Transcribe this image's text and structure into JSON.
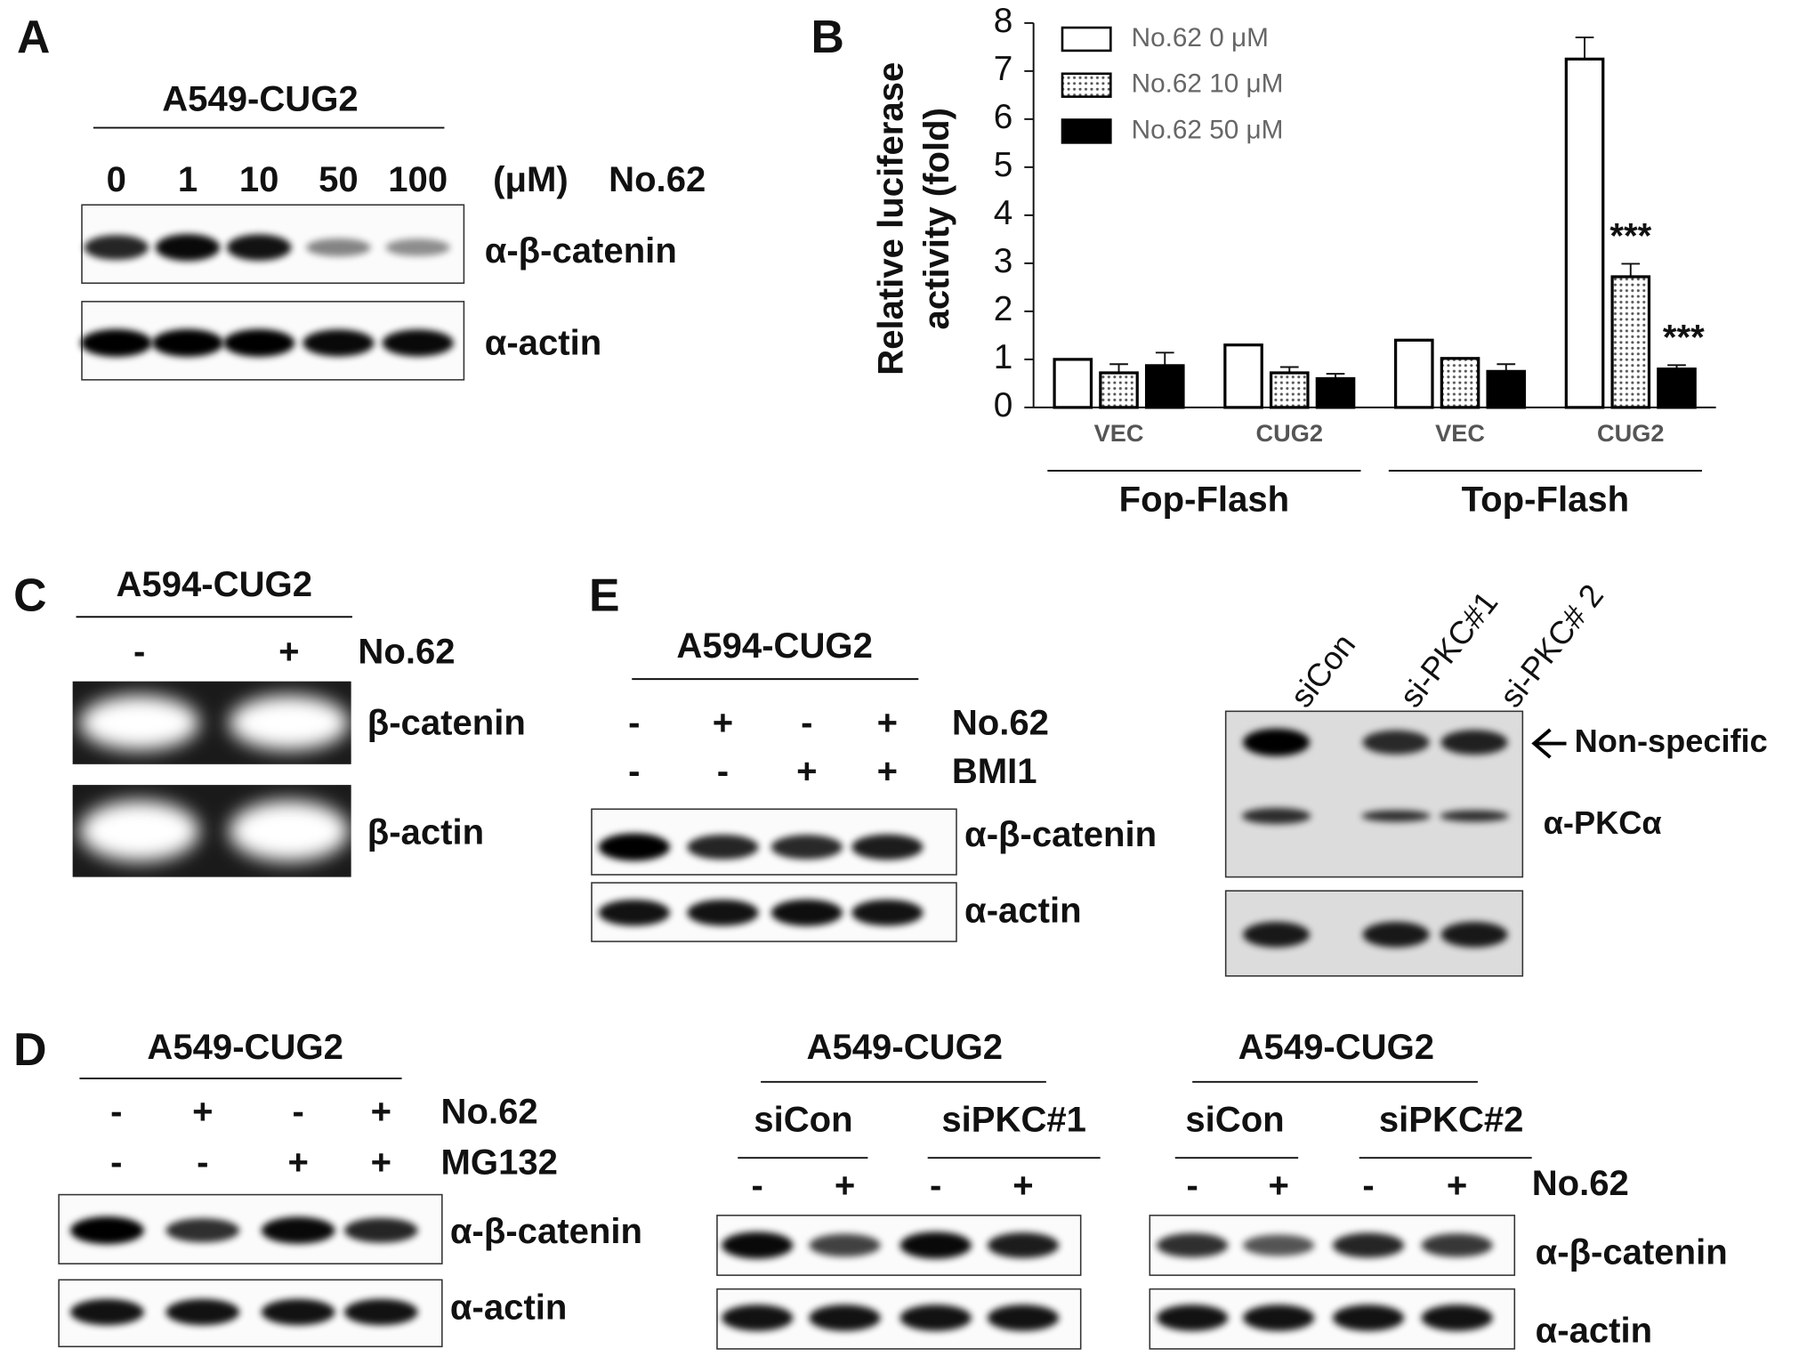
{
  "panels": {
    "A": {
      "letter": "A",
      "cell": "A549-CUG2",
      "doses": [
        "0",
        "1",
        "10",
        "50",
        "100"
      ],
      "unit": "(μM)",
      "drug": "No.62",
      "rows": [
        "α-β-catenin",
        "α-actin"
      ]
    },
    "B": {
      "letter": "B"
    },
    "C": {
      "letter": "C",
      "cell": "A594-CUG2",
      "treatments": [
        "-",
        "+"
      ],
      "drug": "No.62",
      "rows": [
        "β-catenin",
        "β-actin"
      ]
    },
    "E": {
      "letter": "E",
      "cell": "A594-CUG2",
      "drug": "No.62",
      "drug_signs": [
        "-",
        "+",
        "-",
        "+"
      ],
      "drug2": "BMI1",
      "drug2_signs": [
        "-",
        "-",
        "+",
        "+"
      ],
      "rows": [
        "α-β-catenin",
        "α-actin"
      ],
      "si_lanes": [
        "siCon",
        "si-PKC#1",
        "si-PKC# 2"
      ],
      "si_rows": [
        "Non-specific",
        "α-PKCα"
      ]
    },
    "D": {
      "letter": "D",
      "left": {
        "cell": "A549-CUG2",
        "drug": "No.62",
        "drug_signs": [
          "-",
          "+",
          "-",
          "+"
        ],
        "drug2": "MG132",
        "drug2_signs": [
          "-",
          "-",
          "+",
          "+"
        ],
        "rows": [
          "α-β-catenin",
          "α-actin"
        ]
      },
      "middle": {
        "cell": "A549-CUG2",
        "groups": [
          "siCon",
          "siPKC#1"
        ],
        "signs": [
          "-",
          "+",
          "-",
          "+"
        ]
      },
      "right": {
        "cell": "A549-CUG2",
        "groups": [
          "siCon",
          "siPKC#2"
        ],
        "signs": [
          "-",
          "+",
          "-",
          "+"
        ],
        "drug": "No.62",
        "rows": [
          "α-β-catenin",
          "α-actin"
        ]
      }
    }
  },
  "chart_data": {
    "type": "bar",
    "ylabel": [
      "Relative luciferase",
      "activity (fold)"
    ],
    "categories": [
      "VEC",
      "CUG2",
      "VEC",
      "CUG2"
    ],
    "groups": [
      "Fop-Flash",
      "Top-Flash"
    ],
    "series": [
      {
        "name": "No.62 0 μM",
        "color": "#ffffff",
        "values": [
          1.0,
          1.3,
          1.4,
          7.25
        ],
        "errors": [
          0,
          0,
          0,
          0.45
        ]
      },
      {
        "name": "No.62 10 μM",
        "color": "#e6e6e6",
        "fill_pattern": "dots",
        "values": [
          0.72,
          0.72,
          1.02,
          2.72
        ],
        "errors": [
          0.18,
          0.12,
          0,
          0.27
        ]
      },
      {
        "name": "No.62 50 μM",
        "color": "#000000",
        "values": [
          0.87,
          0.6,
          0.75,
          0.8
        ],
        "errors": [
          0.27,
          0.1,
          0.15,
          0.08
        ]
      }
    ],
    "annotations": [
      "***",
      "***"
    ],
    "ylim": [
      0,
      8
    ],
    "yticks": [
      0,
      1,
      2,
      3,
      4,
      5,
      6,
      7,
      8
    ]
  }
}
